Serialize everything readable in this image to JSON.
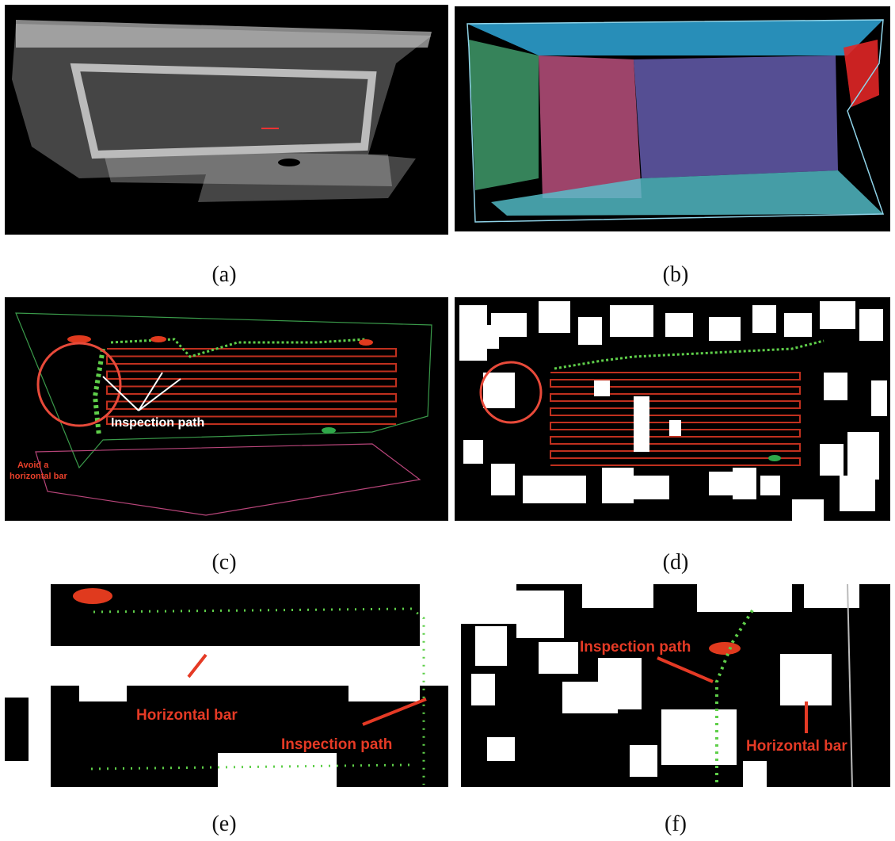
{
  "panels": [
    {
      "caption": "(a)"
    },
    {
      "caption": "(b)"
    },
    {
      "caption": "(c)",
      "annotations": [
        "Inspection path",
        "Avoid a",
        "horizontal bar"
      ]
    },
    {
      "caption": "(d)"
    },
    {
      "caption": "(e)",
      "annotations": [
        "Horizontal bar",
        "Inspection path"
      ]
    },
    {
      "caption": "(f)",
      "annotations": [
        "Inspection path",
        "Horizontal bar"
      ]
    }
  ]
}
